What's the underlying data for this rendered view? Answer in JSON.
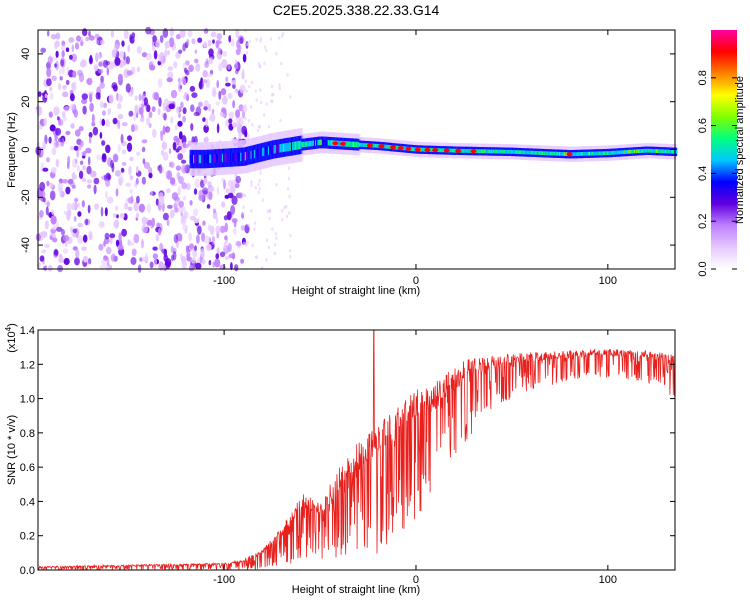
{
  "figure_title": "C2E5.2025.338.22.33.G14",
  "chart_data": [
    {
      "type": "heatmap",
      "panel": "spectrogram",
      "xlabel": "Height of straight line (km)",
      "ylabel": "Frequency (Hz)",
      "xlim": [
        -197,
        135
      ],
      "ylim": [
        -50,
        50
      ],
      "xticks": [
        -100,
        0,
        100
      ],
      "xtick_labels": [
        "-100",
        "0",
        "100"
      ],
      "yticks": [
        -40,
        -20,
        0,
        20,
        40
      ],
      "ytick_labels": [
        "-40",
        "-20",
        "0",
        "20",
        "40"
      ],
      "ridge": {
        "description_points_km": [
          -110,
          -90,
          -75,
          -60,
          -50,
          -40,
          -20,
          0,
          20,
          50,
          80,
          100,
          120,
          135
        ],
        "frequency_hz": [
          -4,
          -3,
          0,
          2,
          3,
          2.5,
          1.5,
          0,
          -0.5,
          -1,
          -2,
          -1.5,
          -0.5,
          -1
        ]
      },
      "colorbar": {
        "label": "Normalized spectral amplitude",
        "range": [
          0.0,
          1.0
        ],
        "ticks": [
          0.0,
          0.2,
          0.4,
          0.6,
          0.8
        ],
        "tick_labels": [
          "0.0",
          "0.2",
          "0.4",
          "0.6",
          "0.8"
        ],
        "colors": [
          "#ffffff",
          "#e6c8ff",
          "#c080ff",
          "#6000e0",
          "#0000ff",
          "#00c8ff",
          "#00ff80",
          "#80ff00",
          "#ffff00",
          "#ff8000",
          "#ff0000",
          "#ff00a0"
        ]
      }
    },
    {
      "type": "line",
      "panel": "snr",
      "xlabel": "Height of straight line (km)",
      "ylabel": "SNR (10 * v/v)",
      "scale_label_base": "(x10",
      "scale_label_exp": "4",
      "scale_label_close": ")",
      "xlim": [
        -197,
        135
      ],
      "ylim": [
        0.0,
        1.4
      ],
      "xticks": [
        -100,
        0,
        100
      ],
      "xtick_labels": [
        "-100",
        "0",
        "100"
      ],
      "yticks": [
        0.0,
        0.2,
        0.4,
        0.6,
        0.8,
        1.0,
        1.2,
        1.4
      ],
      "ytick_labels": [
        "0.0",
        "0.2",
        "0.4",
        "0.6",
        "0.8",
        "1.0",
        "1.2",
        "1.4"
      ],
      "color": "#e8201e",
      "envelope_x_km": [
        -197,
        -150,
        -100,
        -90,
        -80,
        -70,
        -60,
        -50,
        -40,
        -30,
        -20,
        -10,
        0,
        10,
        20,
        30,
        40,
        60,
        80,
        100,
        120,
        135
      ],
      "envelope_top": [
        0.02,
        0.03,
        0.04,
        0.06,
        0.12,
        0.25,
        0.45,
        0.4,
        0.6,
        0.75,
        0.85,
        0.95,
        1.05,
        1.1,
        1.2,
        1.24,
        1.25,
        1.27,
        1.28,
        1.29,
        1.28,
        1.26
      ],
      "envelope_bottom": [
        0.0,
        0.0,
        0.0,
        0.0,
        0.0,
        0.02,
        0.05,
        0.05,
        0.05,
        0.05,
        0.08,
        0.2,
        0.3,
        0.45,
        0.6,
        0.8,
        0.95,
        1.05,
        1.1,
        1.12,
        1.1,
        1.0
      ],
      "spike": {
        "x_km": -22,
        "value": 1.4
      }
    }
  ]
}
